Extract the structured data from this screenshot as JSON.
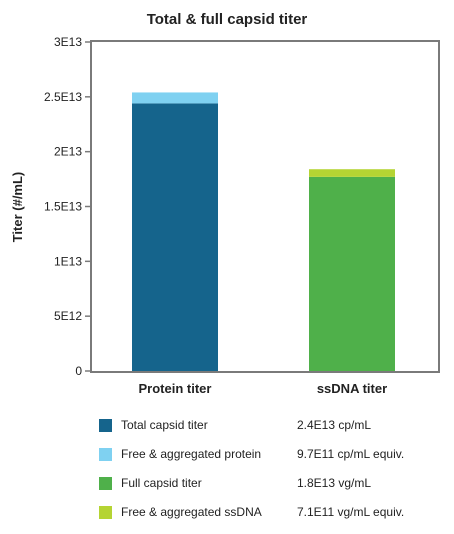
{
  "chart_data": {
    "type": "bar",
    "stacked": true,
    "title": "Total & full capsid titer",
    "ylabel": "Titer (#/mL)",
    "xlabel": "",
    "ylim": [
      0,
      30000000000000.0
    ],
    "yticks": [
      {
        "value": 0,
        "label": "0"
      },
      {
        "value": 5000000000000.0,
        "label": "5E12"
      },
      {
        "value": 10000000000000.0,
        "label": "1E13"
      },
      {
        "value": 15000000000000.0,
        "label": "1.5E13"
      },
      {
        "value": 20000000000000.0,
        "label": "2E13"
      },
      {
        "value": 25000000000000.0,
        "label": "2.5E13"
      },
      {
        "value": 30000000000000.0,
        "label": "3E13"
      }
    ],
    "categories": [
      "Protein titer",
      "ssDNA titer"
    ],
    "grid": false,
    "legend_position": "bottom",
    "series": [
      {
        "name": "Total capsid titer",
        "color": "#15648c",
        "values": [
          24400000000000.0,
          0
        ],
        "value_label": "2.4E13 cp/mL"
      },
      {
        "name": "Free & aggregated protein",
        "color": "#7fd1f1",
        "values": [
          1000000000000.0,
          0
        ],
        "value_label": "9.7E11 cp/mL equiv."
      },
      {
        "name": "Full capsid titer",
        "color": "#4fb04a",
        "values": [
          0,
          17700000000000.0
        ],
        "value_label": "1.8E13 vg/mL"
      },
      {
        "name": "Free & aggregated ssDNA",
        "color": "#b5d433",
        "values": [
          0,
          700000000000.0
        ],
        "value_label": "7.1E11 vg/mL equiv."
      }
    ]
  }
}
